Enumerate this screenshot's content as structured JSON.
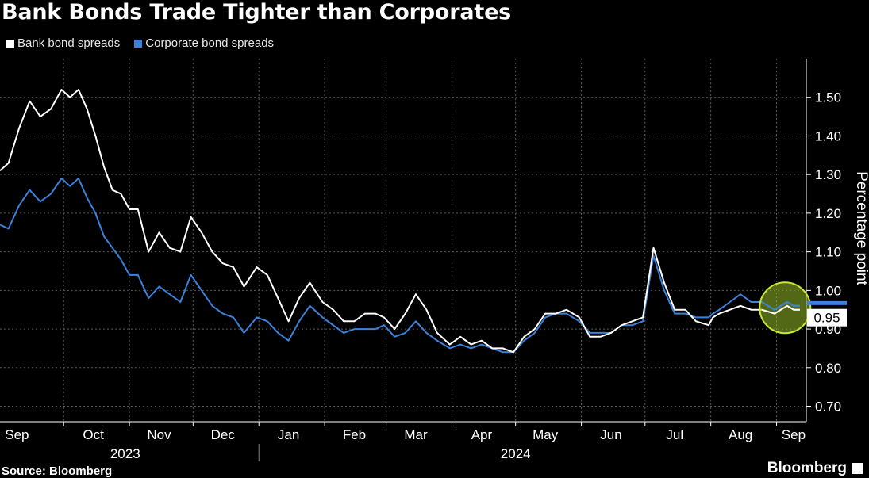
{
  "title": "Bank Bonds Trade Tighter than Corporates",
  "legend": [
    {
      "label": "Bank bond spreads",
      "color": "#ffffff"
    },
    {
      "label": "Corporate bond spreads",
      "color": "#3b82dd"
    }
  ],
  "source": "Source: Bloomberg",
  "brand": "Bloomberg",
  "chart_data": {
    "type": "line",
    "ylabel": "Percentage point",
    "ylim": [
      0.66,
      1.6
    ],
    "yticks": [
      "0.70",
      "0.80",
      "0.90",
      "1.00",
      "1.10",
      "1.20",
      "1.30",
      "1.40",
      "1.50"
    ],
    "month_labels": [
      "Sep",
      "Oct",
      "Nov",
      "Dec",
      "Jan",
      "Feb",
      "Mar",
      "Apr",
      "May",
      "Jun",
      "Jul",
      "Aug",
      "Sep"
    ],
    "year_labels": [
      "2023",
      "2024"
    ],
    "x_start": "2023-09-01",
    "x_end": "2024-09-15",
    "grid": true,
    "current_value_label": "0.95",
    "highlight": "latest values circled",
    "series": [
      {
        "name": "Bank bond spreads",
        "color": "#ffffff",
        "dates": [
          "2023-09-01",
          "2023-09-05",
          "2023-09-10",
          "2023-09-15",
          "2023-09-20",
          "2023-09-25",
          "2023-09-30",
          "2023-10-04",
          "2023-10-08",
          "2023-10-12",
          "2023-10-16",
          "2023-10-20",
          "2023-10-24",
          "2023-10-28",
          "2023-11-01",
          "2023-11-05",
          "2023-11-10",
          "2023-11-15",
          "2023-11-20",
          "2023-11-25",
          "2023-11-30",
          "2023-12-05",
          "2023-12-10",
          "2023-12-15",
          "2023-12-20",
          "2023-12-25",
          "2023-12-31",
          "2024-01-05",
          "2024-01-10",
          "2024-01-15",
          "2024-01-20",
          "2024-01-25",
          "2024-01-31",
          "2024-02-05",
          "2024-02-10",
          "2024-02-15",
          "2024-02-20",
          "2024-02-25",
          "2024-02-29",
          "2024-03-05",
          "2024-03-10",
          "2024-03-15",
          "2024-03-20",
          "2024-03-25",
          "2024-03-31",
          "2024-04-05",
          "2024-04-10",
          "2024-04-15",
          "2024-04-20",
          "2024-04-25",
          "2024-04-30",
          "2024-05-05",
          "2024-05-10",
          "2024-05-15",
          "2024-05-20",
          "2024-05-25",
          "2024-05-31",
          "2024-06-05",
          "2024-06-10",
          "2024-06-15",
          "2024-06-20",
          "2024-06-25",
          "2024-06-30",
          "2024-07-05",
          "2024-07-10",
          "2024-07-15",
          "2024-07-20",
          "2024-07-25",
          "2024-07-31",
          "2024-08-02",
          "2024-08-05",
          "2024-08-10",
          "2024-08-15",
          "2024-08-20",
          "2024-08-25",
          "2024-08-31",
          "2024-09-03",
          "2024-09-06",
          "2024-09-09",
          "2024-09-12"
        ],
        "values": [
          1.31,
          1.33,
          1.42,
          1.49,
          1.45,
          1.47,
          1.52,
          1.5,
          1.52,
          1.47,
          1.4,
          1.32,
          1.26,
          1.25,
          1.21,
          1.21,
          1.1,
          1.15,
          1.11,
          1.1,
          1.19,
          1.15,
          1.1,
          1.07,
          1.06,
          1.01,
          1.06,
          1.04,
          0.98,
          0.92,
          0.98,
          1.02,
          0.97,
          0.95,
          0.92,
          0.92,
          0.94,
          0.94,
          0.93,
          0.9,
          0.94,
          0.99,
          0.95,
          0.89,
          0.86,
          0.88,
          0.86,
          0.87,
          0.85,
          0.85,
          0.84,
          0.88,
          0.9,
          0.94,
          0.94,
          0.95,
          0.93,
          0.88,
          0.88,
          0.89,
          0.91,
          0.92,
          0.93,
          1.11,
          1.02,
          0.95,
          0.95,
          0.92,
          0.91,
          0.93,
          0.94,
          0.95,
          0.96,
          0.95,
          0.95,
          0.94,
          0.95,
          0.96,
          0.95,
          0.95
        ]
      },
      {
        "name": "Corporate bond spreads",
        "color": "#3b82dd",
        "dates": [
          "2023-09-01",
          "2023-09-05",
          "2023-09-10",
          "2023-09-15",
          "2023-09-20",
          "2023-09-25",
          "2023-09-30",
          "2023-10-04",
          "2023-10-08",
          "2023-10-12",
          "2023-10-16",
          "2023-10-20",
          "2023-10-24",
          "2023-10-28",
          "2023-11-01",
          "2023-11-05",
          "2023-11-10",
          "2023-11-15",
          "2023-11-20",
          "2023-11-25",
          "2023-11-30",
          "2023-12-05",
          "2023-12-10",
          "2023-12-15",
          "2023-12-20",
          "2023-12-25",
          "2023-12-31",
          "2024-01-05",
          "2024-01-10",
          "2024-01-15",
          "2024-01-20",
          "2024-01-25",
          "2024-01-31",
          "2024-02-05",
          "2024-02-10",
          "2024-02-15",
          "2024-02-20",
          "2024-02-25",
          "2024-02-29",
          "2024-03-05",
          "2024-03-10",
          "2024-03-15",
          "2024-03-20",
          "2024-03-25",
          "2024-03-31",
          "2024-04-05",
          "2024-04-10",
          "2024-04-15",
          "2024-04-20",
          "2024-04-25",
          "2024-04-30",
          "2024-05-05",
          "2024-05-10",
          "2024-05-15",
          "2024-05-20",
          "2024-05-25",
          "2024-05-31",
          "2024-06-05",
          "2024-06-10",
          "2024-06-15",
          "2024-06-20",
          "2024-06-25",
          "2024-06-30",
          "2024-07-05",
          "2024-07-10",
          "2024-07-15",
          "2024-07-20",
          "2024-07-25",
          "2024-07-31",
          "2024-08-02",
          "2024-08-05",
          "2024-08-10",
          "2024-08-15",
          "2024-08-20",
          "2024-08-25",
          "2024-08-31",
          "2024-09-03",
          "2024-09-06",
          "2024-09-09",
          "2024-09-12"
        ],
        "values": [
          1.17,
          1.16,
          1.22,
          1.26,
          1.23,
          1.25,
          1.29,
          1.27,
          1.29,
          1.24,
          1.2,
          1.14,
          1.11,
          1.08,
          1.04,
          1.04,
          0.98,
          1.01,
          0.99,
          0.97,
          1.04,
          1.0,
          0.96,
          0.94,
          0.93,
          0.89,
          0.93,
          0.92,
          0.89,
          0.87,
          0.92,
          0.96,
          0.93,
          0.91,
          0.89,
          0.9,
          0.9,
          0.9,
          0.91,
          0.88,
          0.89,
          0.92,
          0.89,
          0.87,
          0.85,
          0.86,
          0.85,
          0.86,
          0.85,
          0.84,
          0.84,
          0.87,
          0.89,
          0.93,
          0.94,
          0.94,
          0.92,
          0.89,
          0.89,
          0.89,
          0.91,
          0.91,
          0.92,
          1.09,
          1.0,
          0.94,
          0.94,
          0.93,
          0.93,
          0.94,
          0.95,
          0.97,
          0.99,
          0.97,
          0.97,
          0.95,
          0.96,
          0.97,
          0.96,
          0.96
        ]
      }
    ]
  }
}
